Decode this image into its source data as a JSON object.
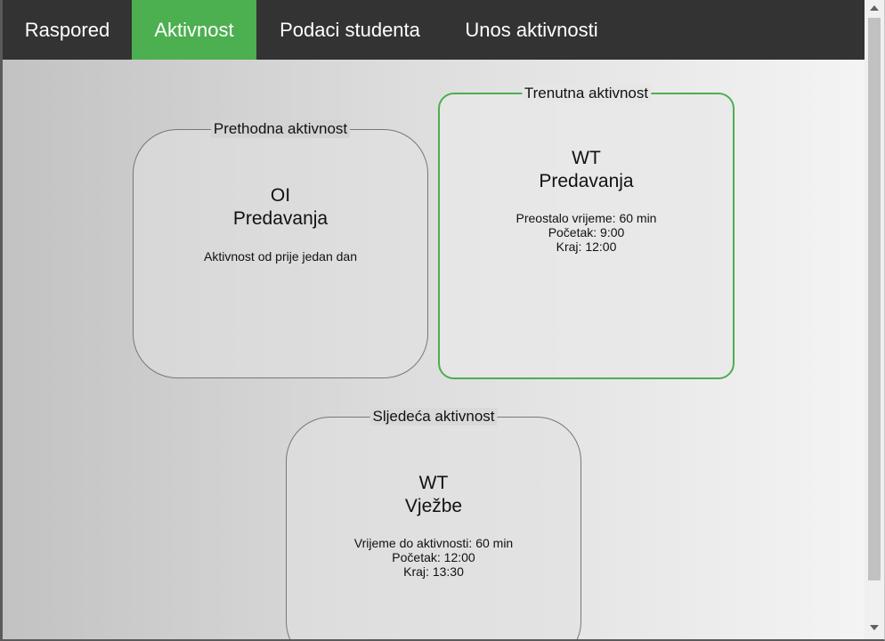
{
  "navbar": {
    "items": [
      {
        "label": "Raspored",
        "active": false
      },
      {
        "label": "Aktivnost",
        "active": true
      },
      {
        "label": "Podaci studenta",
        "active": false
      },
      {
        "label": "Unos aktivnosti",
        "active": false
      }
    ],
    "active_color": "#4caf50",
    "background_color": "#333333"
  },
  "activities": {
    "previous": {
      "legend": "Prethodna aktivnost",
      "subject": "OI",
      "type": "Predavanja",
      "note": "Aktivnost od prije jedan dan"
    },
    "current": {
      "legend": "Trenutna aktivnost",
      "subject": "WT",
      "type": "Predavanja",
      "remaining": "Preostalo vrijeme: 60 min",
      "start": "Početak: 9:00",
      "end": "Kraj: 12:00",
      "border_color": "#4caf50"
    },
    "next": {
      "legend": "Sljedeća aktivnost",
      "subject": "WT",
      "type": "Vježbe",
      "time_until": "Vrijeme do aktivnosti: 60 min",
      "start": "Početak: 12:00",
      "end": "Kraj: 13:30"
    }
  }
}
